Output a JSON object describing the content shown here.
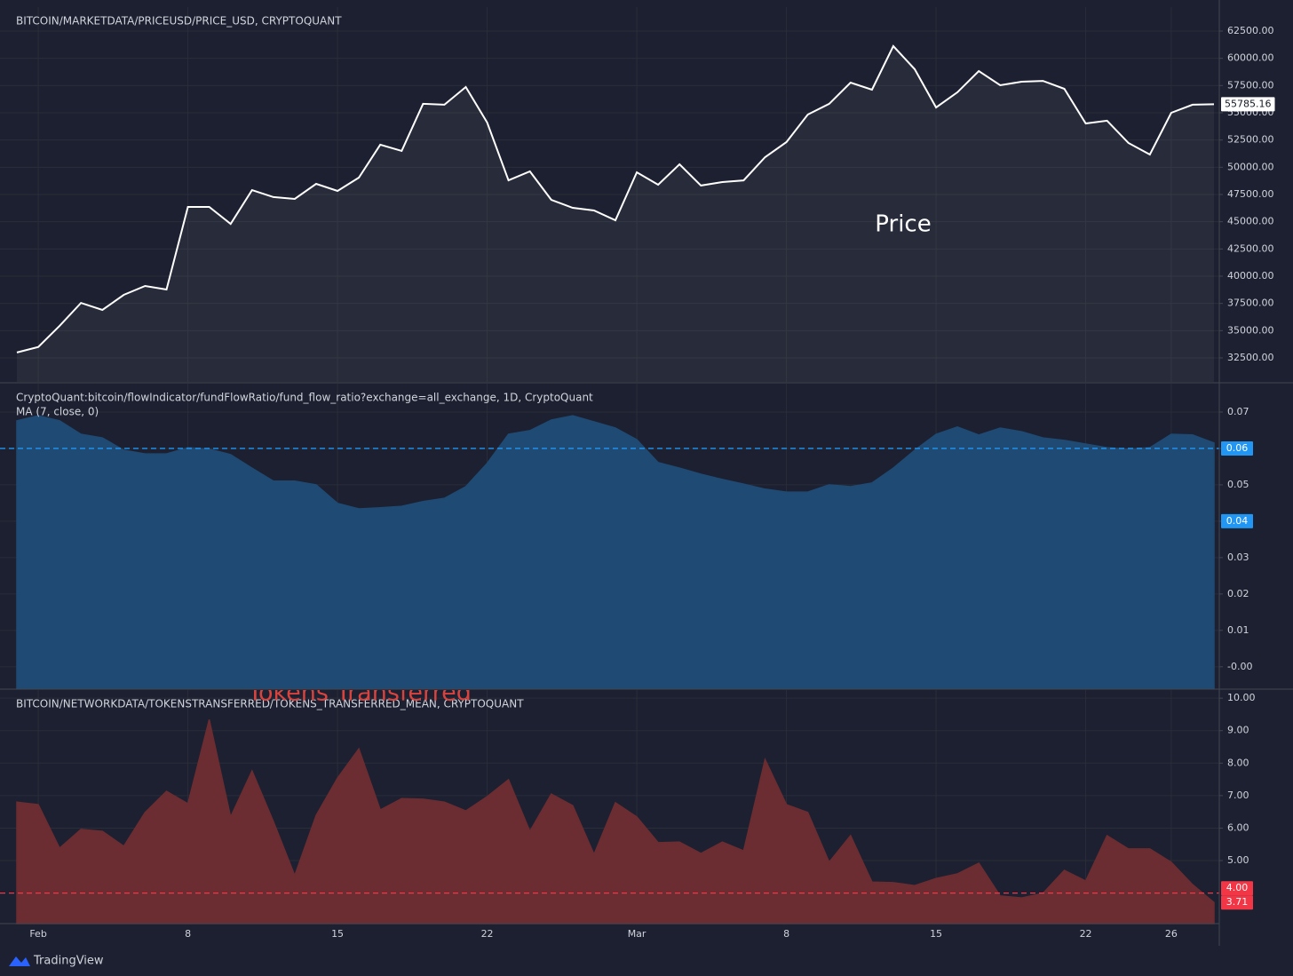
{
  "chart_data": [
    {
      "type": "area-line",
      "title": "BITCOIN/MARKETDATA/PRICEUSD/PRICE_USD, CRYPTOQUANT",
      "annotation": "Price",
      "color": "#ffffff",
      "values": [
        33000,
        33500,
        35440,
        37550,
        36900,
        38290,
        39100,
        38780,
        46360,
        46360,
        44800,
        47900,
        47260,
        47090,
        48480,
        47830,
        49050,
        52070,
        51500,
        55820,
        55740,
        57360,
        54100,
        48800,
        49620,
        47010,
        46280,
        46030,
        45140,
        49540,
        48400,
        50270,
        48320,
        48640,
        48800,
        50920,
        52310,
        54840,
        55820,
        57770,
        57120,
        61120,
        59000,
        55490,
        56880,
        58830,
        57530,
        57850,
        57930,
        57200,
        54020,
        54270,
        52230,
        51170,
        55000,
        55740,
        55785.16
      ],
      "ylim": [
        30300,
        64700
      ],
      "yticks": [
        {
          "value": 32500,
          "label": "32500.00"
        },
        {
          "value": 35000,
          "label": "35000.00"
        },
        {
          "value": 37500,
          "label": "37500.00"
        },
        {
          "value": 40000,
          "label": "40000.00"
        },
        {
          "value": 42500,
          "label": "42500.00"
        },
        {
          "value": 45000,
          "label": "45000.00"
        },
        {
          "value": 47500,
          "label": "47500.00"
        },
        {
          "value": 50000,
          "label": "50000.00"
        },
        {
          "value": 52500,
          "label": "52500.00"
        },
        {
          "value": 55000,
          "label": "55000.00"
        },
        {
          "value": 57500,
          "label": "57500.00"
        },
        {
          "value": 60000,
          "label": "60000.00"
        },
        {
          "value": 62500,
          "label": "62500.00"
        }
      ],
      "grid": true
    },
    {
      "type": "area",
      "title": "CryptoQuant:bitcoin/flowIndicator/fundFlowRatio/fund_flow_ratio?exchange=all_exchange, 1D, CryptoQuant",
      "subtitle": "MA (7, close, 0)",
      "color": "#1f4a73",
      "values": [
        0.0676,
        0.069,
        0.0676,
        0.0639,
        0.0629,
        0.0595,
        0.0585,
        0.0585,
        0.0602,
        0.0598,
        0.0583,
        0.0546,
        0.051,
        0.051,
        0.05,
        0.0449,
        0.0434,
        0.0437,
        0.0441,
        0.0454,
        0.0463,
        0.0495,
        0.0559,
        0.0639,
        0.0649,
        0.0678,
        0.069,
        0.0673,
        0.0656,
        0.0624,
        0.0561,
        0.0546,
        0.0529,
        0.0515,
        0.0502,
        0.0488,
        0.048,
        0.048,
        0.05,
        0.0495,
        0.0505,
        0.0546,
        0.0595,
        0.0639,
        0.0659,
        0.0637,
        0.0656,
        0.0646,
        0.0629,
        0.0622,
        0.0612,
        0.0602,
        0.0598,
        0.0602,
        0.0639,
        0.0637,
        0.0615
      ],
      "ylim": [
        -0.0059,
        0.0778
      ],
      "yticks": [
        {
          "value": 0,
          "label": "-0.00"
        },
        0.01,
        0.02,
        0.03,
        0.04,
        0.05,
        0.06,
        0.07
      ],
      "axis_tags": [
        {
          "value": 0.06,
          "color": "#2196f3",
          "dashed": true
        },
        {
          "value": 0.04,
          "color": "#2196f3",
          "dashed": false
        }
      ],
      "grid": true
    },
    {
      "type": "area",
      "title": "BITCOIN/NETWORKDATA/TOKENSTRANSFERRED/TOKENS_TRANSFERRED_MEAN, CRYPTOQUANT",
      "annotation": "Tokens Transferred",
      "color": "#6b2d31",
      "values": [
        6.8,
        6.72,
        5.38,
        5.96,
        5.9,
        5.44,
        6.48,
        7.13,
        6.75,
        9.34,
        6.34,
        7.76,
        6.2,
        4.54,
        6.39,
        7.54,
        8.44,
        6.56,
        6.91,
        6.89,
        6.8,
        6.53,
        6.97,
        7.49,
        5.9,
        7.05,
        6.69,
        5.19,
        6.78,
        6.34,
        5.55,
        5.57,
        5.22,
        5.57,
        5.3,
        8.11,
        6.72,
        6.48,
        4.95,
        5.77,
        4.34,
        4.32,
        4.23,
        4.45,
        4.59,
        4.92,
        3.91,
        3.85,
        3.99,
        4.7,
        4.37,
        5.77,
        5.36,
        5.36,
        4.95,
        4.26,
        3.71
      ],
      "value_labels": [
        null,
        null,
        null,
        null,
        null,
        null,
        null,
        null,
        null,
        null,
        null,
        null,
        null,
        null,
        null,
        null,
        null,
        null,
        null,
        null,
        null,
        null,
        null,
        null,
        null,
        null,
        null,
        null,
        null,
        null,
        null,
        null,
        null,
        null,
        null,
        null,
        null,
        null,
        null,
        null,
        null,
        null,
        null,
        null,
        null,
        null,
        null,
        null,
        null,
        null,
        null,
        null,
        null,
        null,
        null,
        null,
        "3.71"
      ],
      "ylim": [
        3.06,
        10.25
      ],
      "yticks": [
        {
          "value": 5,
          "label": "5.00"
        },
        {
          "value": 6,
          "label": "6.00"
        },
        {
          "value": 7,
          "label": "7.00"
        },
        {
          "value": 8,
          "label": "8.00"
        },
        {
          "value": 9,
          "label": "9.00"
        },
        {
          "value": 10,
          "label": "10.00"
        }
      ],
      "axis_tags": [
        {
          "value": 4,
          "label": "4.00",
          "color": "#f23645",
          "dashed": true
        }
      ],
      "categories": [
        null,
        "Feb",
        null,
        null,
        null,
        null,
        null,
        null,
        "8",
        null,
        null,
        null,
        null,
        null,
        null,
        "15",
        null,
        null,
        null,
        null,
        null,
        null,
        "22",
        null,
        null,
        null,
        null,
        null,
        null,
        "Mar",
        null,
        null,
        null,
        null,
        null,
        null,
        "8",
        null,
        null,
        null,
        null,
        null,
        null,
        "15",
        null,
        null,
        null,
        null,
        null,
        null,
        "22",
        null,
        null,
        null,
        "26",
        null,
        null
      ],
      "grid": true
    }
  ],
  "brand": "TradingView"
}
